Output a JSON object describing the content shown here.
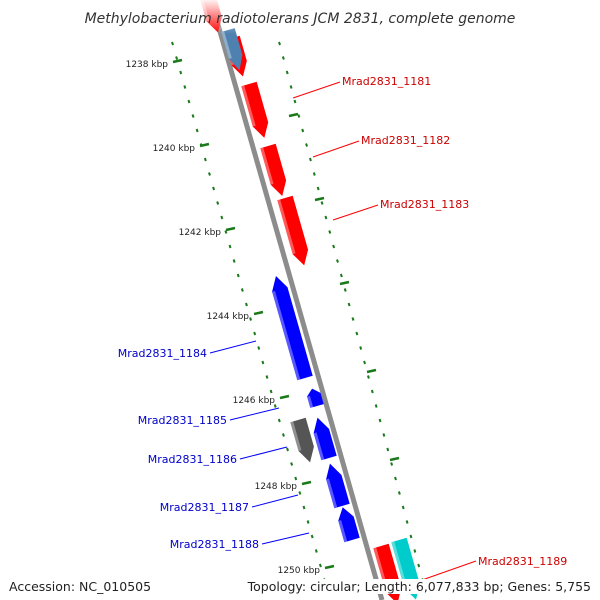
{
  "title": "Methylobacterium radiotolerans JCM 2831, complete genome",
  "footer": {
    "accession": "Accession: NC_010505",
    "summary": "Topology: circular; Length: 6,077,833 bp; Genes: 5,755"
  },
  "colors": {
    "forward_gene": "#ff0000",
    "reverse_gene": "#0000ff",
    "trna_gene": "#4f81b0",
    "other_gene": "#555555",
    "rrna_gene": "#00cccc",
    "backbone": "#8c8c8c",
    "tick": "#1a7a1a"
  },
  "ticks": [
    {
      "label": "1238 kbp"
    },
    {
      "label": "1240 kbp"
    },
    {
      "label": "1242 kbp"
    },
    {
      "label": "1244 kbp"
    },
    {
      "label": "1246 kbp"
    },
    {
      "label": "1248 kbp"
    },
    {
      "label": "1250 kbp"
    }
  ],
  "genes": [
    {
      "name": "Mrad2831_1181",
      "strand": "+"
    },
    {
      "name": "Mrad2831_1182",
      "strand": "+"
    },
    {
      "name": "Mrad2831_1183",
      "strand": "+"
    },
    {
      "name": "Mrad2831_1184",
      "strand": "-"
    },
    {
      "name": "Mrad2831_1185",
      "strand": "-"
    },
    {
      "name": "Mrad2831_1186",
      "strand": "-"
    },
    {
      "name": "Mrad2831_1187",
      "strand": "-"
    },
    {
      "name": "Mrad2831_1188",
      "strand": "-"
    },
    {
      "name": "Mrad2831_1189",
      "strand": "+"
    }
  ]
}
